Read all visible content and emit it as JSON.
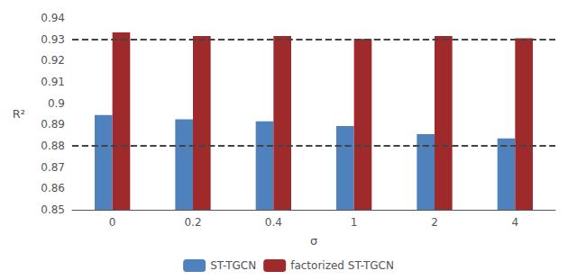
{
  "chart_data": {
    "type": "bar",
    "xlabel": "σ",
    "ylabel": "R²",
    "categories": [
      "0",
      "0.2",
      "0.4",
      "1",
      "2",
      "4"
    ],
    "series": [
      {
        "name": "ST-TGCN",
        "color": "#4f81bd",
        "values": [
          0.8945,
          0.8925,
          0.8915,
          0.8893,
          0.8855,
          0.8835
        ]
      },
      {
        "name": "factorized ST-TGCN",
        "color": "#9e2a2b",
        "values": [
          0.9332,
          0.9315,
          0.9315,
          0.9302,
          0.9315,
          0.9305
        ]
      }
    ],
    "hlines": [
      {
        "value": 0.8835,
        "color": "#444444",
        "line_style": "dashed"
      },
      {
        "value": 0.93,
        "color": "#444444",
        "line_style": "dashed"
      }
    ],
    "ylim": [
      0.85,
      0.94
    ],
    "yticks": [
      0.85,
      0.86,
      0.87,
      0.88,
      0.89,
      0.9,
      0.91,
      0.92,
      0.93,
      0.94
    ],
    "grid": false,
    "legend": "bottom"
  }
}
